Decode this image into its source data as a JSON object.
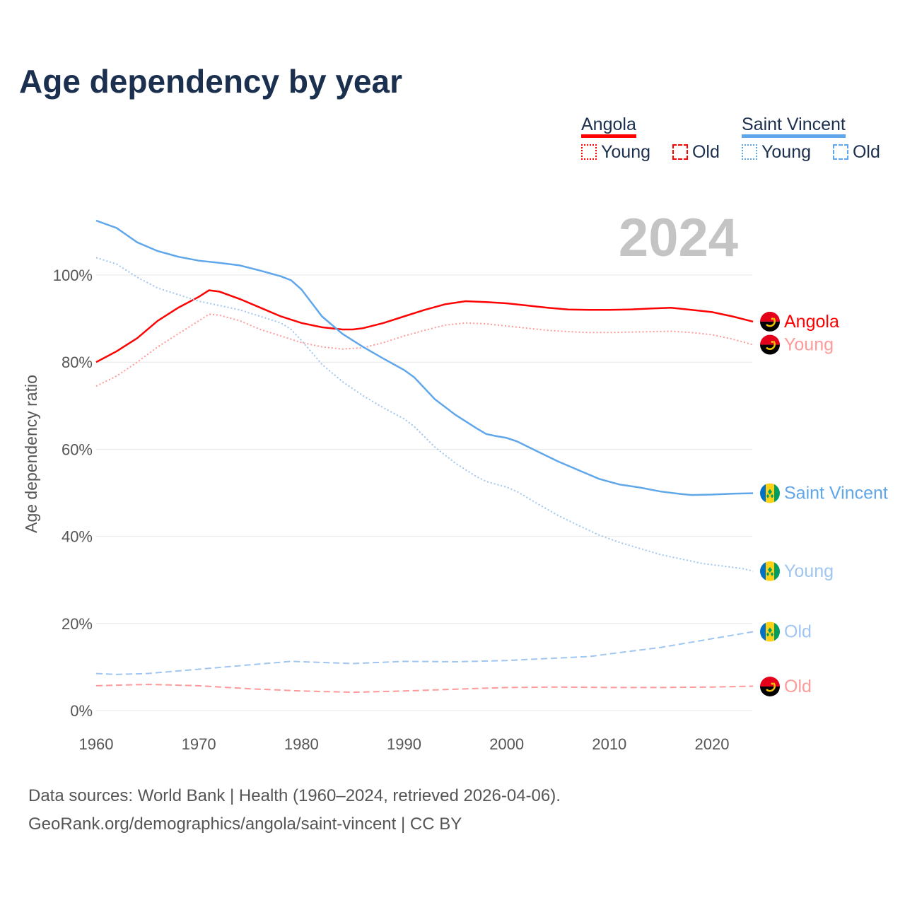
{
  "chart_data": {
    "type": "line",
    "title": "Age dependency by year",
    "ylabel": "Age dependency ratio",
    "xlabel": "",
    "xlim": [
      1960,
      2024
    ],
    "ylim": [
      0,
      115
    ],
    "x_ticks": [
      1960,
      1970,
      1980,
      1990,
      2000,
      2010,
      2020
    ],
    "y_ticks": [
      0,
      20,
      40,
      60,
      80,
      100
    ],
    "y_tick_labels": [
      "0%",
      "20%",
      "40%",
      "60%",
      "80%",
      "100%"
    ],
    "grid": true,
    "year_label": "2024",
    "legend": {
      "placement": "top-right",
      "groups": [
        {
          "name": "Angola",
          "color": "#ff0000",
          "items": [
            "Young",
            "Old"
          ]
        },
        {
          "name": "Saint Vincent",
          "color": "#5fa6ea",
          "items": [
            "Young",
            "Old"
          ]
        }
      ]
    },
    "series": [
      {
        "name": "Angola",
        "end_label": "Angola",
        "country": "angola",
        "style": "solid",
        "color": "#ff0000",
        "points": [
          [
            1960,
            80
          ],
          [
            1962,
            82.5
          ],
          [
            1964,
            85.5
          ],
          [
            1966,
            89.5
          ],
          [
            1968,
            92.5
          ],
          [
            1970,
            95
          ],
          [
            1971,
            96.5
          ],
          [
            1972,
            96.2
          ],
          [
            1974,
            94.5
          ],
          [
            1976,
            92.5
          ],
          [
            1978,
            90.5
          ],
          [
            1980,
            89
          ],
          [
            1982,
            88
          ],
          [
            1984,
            87.5
          ],
          [
            1985,
            87.5
          ],
          [
            1986,
            87.8
          ],
          [
            1988,
            89
          ],
          [
            1990,
            90.5
          ],
          [
            1992,
            92
          ],
          [
            1994,
            93.3
          ],
          [
            1996,
            94
          ],
          [
            1998,
            93.8
          ],
          [
            2000,
            93.5
          ],
          [
            2002,
            93
          ],
          [
            2004,
            92.5
          ],
          [
            2006,
            92.1
          ],
          [
            2008,
            92
          ],
          [
            2010,
            92
          ],
          [
            2012,
            92.1
          ],
          [
            2014,
            92.3
          ],
          [
            2016,
            92.5
          ],
          [
            2018,
            92
          ],
          [
            2020,
            91.5
          ],
          [
            2022,
            90.5
          ],
          [
            2024,
            89.3
          ]
        ]
      },
      {
        "name": "Angola Young",
        "end_label": "Young",
        "country": "angola",
        "style": "dotted",
        "color": "#ff9a9a",
        "points": [
          [
            1960,
            74.5
          ],
          [
            1962,
            76.8
          ],
          [
            1964,
            80
          ],
          [
            1966,
            83.5
          ],
          [
            1968,
            86.5
          ],
          [
            1970,
            89.5
          ],
          [
            1971,
            91
          ],
          [
            1972,
            90.8
          ],
          [
            1974,
            89.5
          ],
          [
            1976,
            87.5
          ],
          [
            1978,
            86
          ],
          [
            1980,
            84.5
          ],
          [
            1982,
            83.5
          ],
          [
            1984,
            83
          ],
          [
            1986,
            83.3
          ],
          [
            1988,
            84.5
          ],
          [
            1990,
            86
          ],
          [
            1992,
            87.3
          ],
          [
            1994,
            88.5
          ],
          [
            1996,
            89
          ],
          [
            1998,
            88.8
          ],
          [
            2000,
            88.3
          ],
          [
            2002,
            87.8
          ],
          [
            2004,
            87.3
          ],
          [
            2006,
            87
          ],
          [
            2008,
            86.8
          ],
          [
            2010,
            86.8
          ],
          [
            2012,
            86.9
          ],
          [
            2014,
            87
          ],
          [
            2016,
            87.1
          ],
          [
            2018,
            86.8
          ],
          [
            2020,
            86.3
          ],
          [
            2022,
            85.3
          ],
          [
            2024,
            84
          ]
        ]
      },
      {
        "name": "Angola Old",
        "end_label": "Old",
        "country": "angola",
        "style": "dashed",
        "color": "#ff9a9a",
        "points": [
          [
            1960,
            5.7
          ],
          [
            1965,
            6
          ],
          [
            1970,
            5.7
          ],
          [
            1975,
            5
          ],
          [
            1980,
            4.5
          ],
          [
            1985,
            4.2
          ],
          [
            1990,
            4.5
          ],
          [
            1995,
            4.9
          ],
          [
            2000,
            5.3
          ],
          [
            2005,
            5.4
          ],
          [
            2010,
            5.3
          ],
          [
            2015,
            5.3
          ],
          [
            2020,
            5.4
          ],
          [
            2024,
            5.6
          ]
        ]
      },
      {
        "name": "Saint Vincent",
        "end_label": "Saint Vincent",
        "country": "svg",
        "style": "solid",
        "color": "#5fa6ea",
        "points": [
          [
            1960,
            112.5
          ],
          [
            1962,
            110.8
          ],
          [
            1964,
            107.5
          ],
          [
            1966,
            105.5
          ],
          [
            1968,
            104.2
          ],
          [
            1970,
            103.3
          ],
          [
            1972,
            102.8
          ],
          [
            1974,
            102.2
          ],
          [
            1976,
            101
          ],
          [
            1978,
            99.7
          ],
          [
            1979,
            98.8
          ],
          [
            1980,
            96.7
          ],
          [
            1982,
            90.5
          ],
          [
            1984,
            86.5
          ],
          [
            1986,
            83.5
          ],
          [
            1988,
            80.8
          ],
          [
            1990,
            78.2
          ],
          [
            1991,
            76.5
          ],
          [
            1993,
            71.5
          ],
          [
            1995,
            67.9
          ],
          [
            1997,
            64.9
          ],
          [
            1998,
            63.5
          ],
          [
            1999,
            63
          ],
          [
            2000,
            62.6
          ],
          [
            2001,
            61.8
          ],
          [
            2003,
            59.5
          ],
          [
            2005,
            57.2
          ],
          [
            2007,
            55.2
          ],
          [
            2009,
            53.2
          ],
          [
            2011,
            51.9
          ],
          [
            2013,
            51.2
          ],
          [
            2015,
            50.3
          ],
          [
            2017,
            49.7
          ],
          [
            2018,
            49.5
          ],
          [
            2020,
            49.6
          ],
          [
            2022,
            49.8
          ],
          [
            2024,
            49.9
          ]
        ]
      },
      {
        "name": "Saint Vincent Young",
        "end_label": "Young",
        "country": "svg",
        "style": "dotted",
        "color": "#9fc6f0",
        "points": [
          [
            1960,
            104
          ],
          [
            1962,
            102.5
          ],
          [
            1964,
            99.5
          ],
          [
            1966,
            97
          ],
          [
            1968,
            95.5
          ],
          [
            1970,
            94
          ],
          [
            1972,
            93
          ],
          [
            1974,
            92
          ],
          [
            1976,
            90.5
          ],
          [
            1978,
            89
          ],
          [
            1979,
            87.5
          ],
          [
            1980,
            85
          ],
          [
            1982,
            79.5
          ],
          [
            1984,
            75.5
          ],
          [
            1986,
            72.3
          ],
          [
            1988,
            69.5
          ],
          [
            1990,
            67
          ],
          [
            1991,
            65.2
          ],
          [
            1993,
            60.5
          ],
          [
            1995,
            56.8
          ],
          [
            1997,
            53.8
          ],
          [
            1998,
            52.6
          ],
          [
            2000,
            51.3
          ],
          [
            2001,
            50.3
          ],
          [
            2003,
            47.5
          ],
          [
            2005,
            44.8
          ],
          [
            2007,
            42.5
          ],
          [
            2009,
            40.3
          ],
          [
            2011,
            38.6
          ],
          [
            2013,
            37.2
          ],
          [
            2015,
            35.8
          ],
          [
            2017,
            34.8
          ],
          [
            2019,
            33.8
          ],
          [
            2021,
            33.2
          ],
          [
            2023,
            32.6
          ],
          [
            2024,
            32
          ]
        ]
      },
      {
        "name": "Saint Vincent Old",
        "end_label": "Old",
        "country": "svg",
        "style": "dashed",
        "color": "#9fc6f0",
        "points": [
          [
            1960,
            8.5
          ],
          [
            1962,
            8.3
          ],
          [
            1965,
            8.5
          ],
          [
            1970,
            9.5
          ],
          [
            1975,
            10.5
          ],
          [
            1979,
            11.3
          ],
          [
            1985,
            10.8
          ],
          [
            1990,
            11.3
          ],
          [
            1995,
            11.2
          ],
          [
            2000,
            11.5
          ],
          [
            2008,
            12.4
          ],
          [
            2015,
            14.5
          ],
          [
            2020,
            16.5
          ],
          [
            2024,
            18.1
          ]
        ]
      }
    ]
  },
  "source": {
    "line1": "Data sources: World Bank | Health (1960–2024, retrieved 2026-04-06).",
    "line2": "GeoRank.org/demographics/angola/saint-vincent | CC BY"
  }
}
